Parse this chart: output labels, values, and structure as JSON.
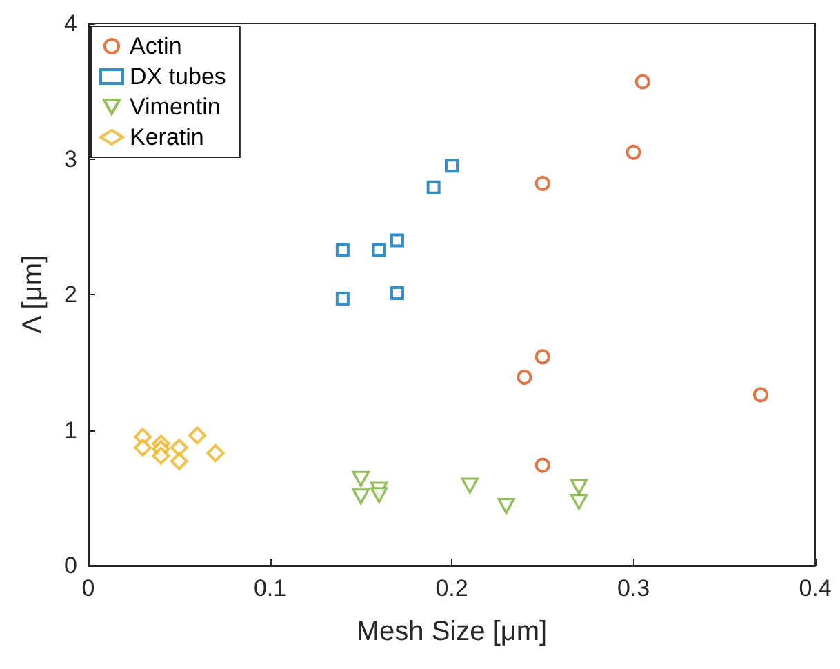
{
  "chart_data": {
    "type": "scatter",
    "xlabel": "Mesh Size [μm]",
    "ylabel": "Λ [μm]",
    "xlim": [
      0,
      0.4
    ],
    "xticks": [
      0,
      0.1,
      0.2,
      0.3,
      0.4
    ],
    "ylim": [
      0,
      4
    ],
    "yticks": [
      0,
      1,
      2,
      3,
      4
    ],
    "grid": false,
    "legend": "top left",
    "series": [
      {
        "name": "Actin",
        "color": "#d95319",
        "marker": "circle",
        "x": [
          0.305,
          0.3,
          0.25,
          0.25,
          0.24,
          0.37,
          0.25
        ],
        "values": [
          3.57,
          3.05,
          2.82,
          1.54,
          1.39,
          1.26,
          0.74
        ]
      },
      {
        "name": "DX tubes",
        "color": "#0072bd",
        "marker": "square",
        "x": [
          0.14,
          0.14,
          0.16,
          0.17,
          0.17,
          0.19,
          0.2
        ],
        "values": [
          2.33,
          1.97,
          2.33,
          2.4,
          2.01,
          2.79,
          2.95
        ]
      },
      {
        "name": "Vimentin",
        "color": "#77ac30",
        "marker": "triangle",
        "x": [
          0.15,
          0.15,
          0.16,
          0.16,
          0.21,
          0.23,
          0.27,
          0.27
        ],
        "values": [
          0.64,
          0.51,
          0.56,
          0.52,
          0.59,
          0.44,
          0.58,
          0.47
        ]
      },
      {
        "name": "Keratin",
        "color": "#edb120",
        "marker": "diamond",
        "x": [
          0.03,
          0.03,
          0.04,
          0.04,
          0.04,
          0.05,
          0.05,
          0.06,
          0.07
        ],
        "values": [
          0.95,
          0.87,
          0.9,
          0.86,
          0.81,
          0.87,
          0.77,
          0.96,
          0.83
        ]
      }
    ]
  }
}
